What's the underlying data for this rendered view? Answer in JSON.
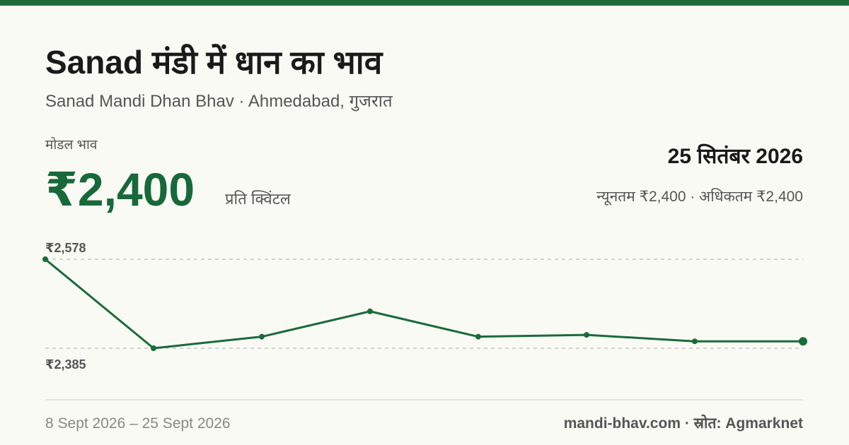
{
  "header": {
    "title": "Sanad मंडी में धान का भाव",
    "subtitle": "Sanad Mandi Dhan Bhav · Ahmedabad, गुजरात"
  },
  "summary": {
    "label": "मोडल भाव",
    "price": "₹2,400",
    "unit": "प्रति क्विंटल",
    "date": "25 सितंबर 2026",
    "range": "न्यूनतम ₹2,400 · अधिकतम ₹2,400"
  },
  "chart_data": {
    "type": "line",
    "values": [
      2578,
      2385,
      2410,
      2465,
      2410,
      2414,
      2400,
      2400
    ],
    "color": "#1a6b3a",
    "ylim": [
      2385,
      2578
    ],
    "yticks": [
      {
        "value": 2578,
        "label": "₹2,578"
      },
      {
        "value": 2385,
        "label": "₹2,385"
      }
    ],
    "grid": true
  },
  "footer": {
    "period": "8 Sept 2026 – 25 Sept 2026",
    "source": "mandi-bhav.com · स्रोत: Agmarknet"
  }
}
